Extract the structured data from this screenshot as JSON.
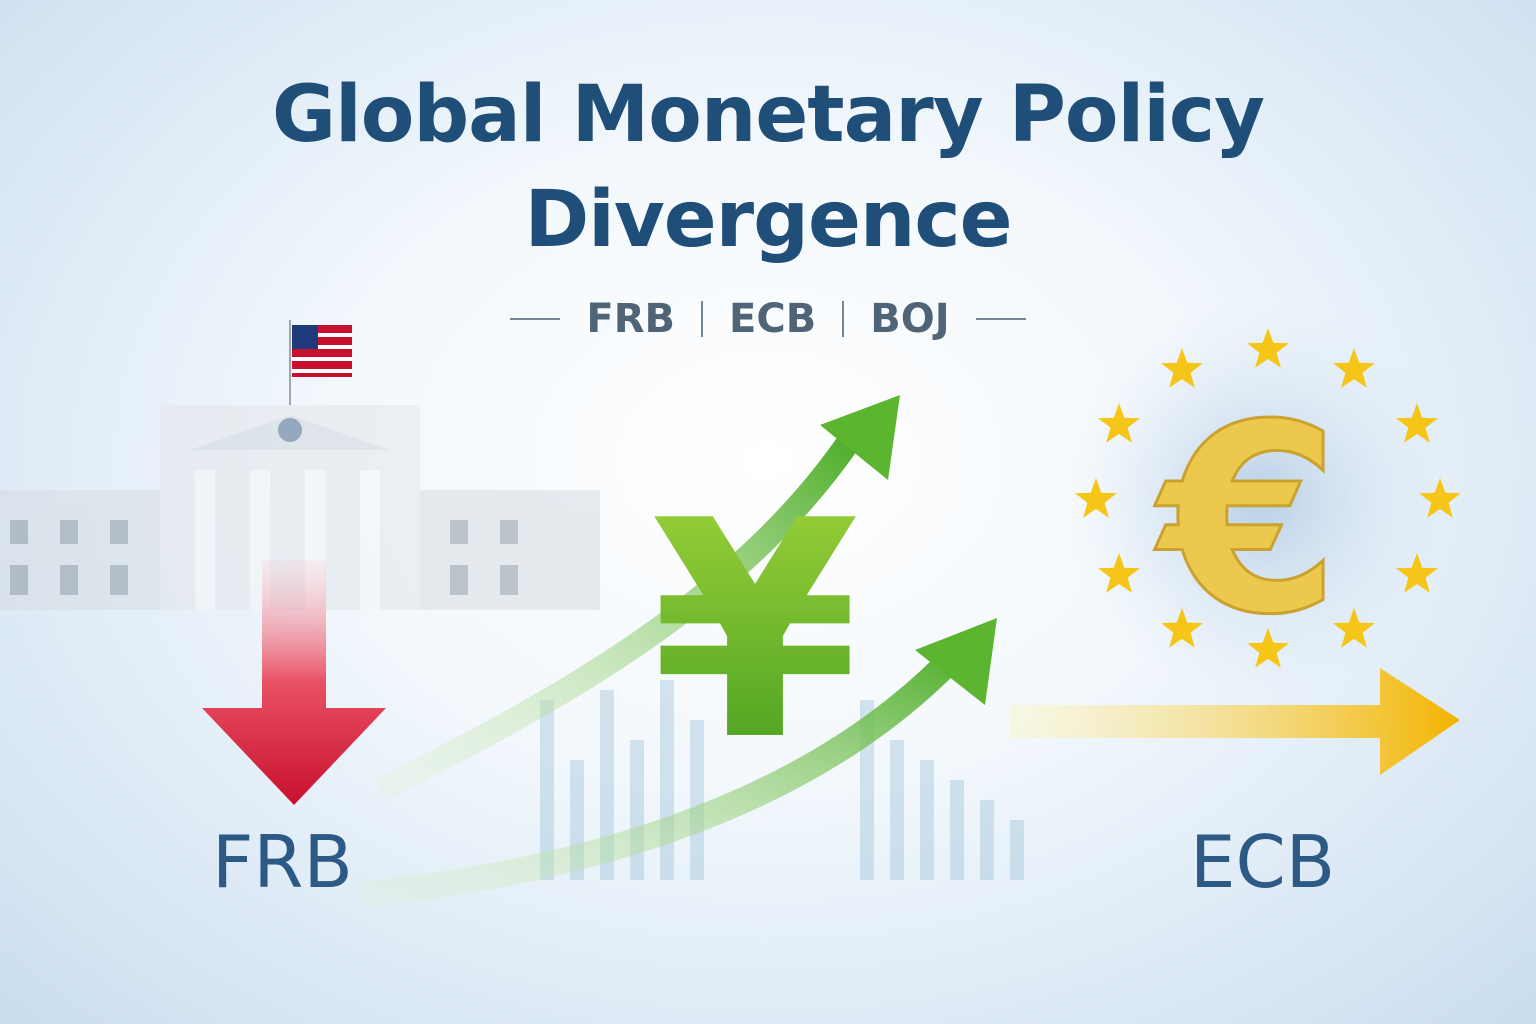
{
  "title": {
    "line1": "Global Monetary Policy",
    "line2": "Divergence"
  },
  "subtitle": {
    "items": [
      "FRB",
      "ECB",
      "BOJ"
    ]
  },
  "labels": {
    "left": "FRB",
    "right": "ECB"
  },
  "symbols": {
    "center": "¥",
    "right": "€"
  },
  "colors": {
    "title": "#1f4e79",
    "down_arrow": "#d8273a",
    "up_arrow": "#5cb530",
    "flat_arrow": "#f5c02a",
    "euro": "#e9c84a"
  }
}
